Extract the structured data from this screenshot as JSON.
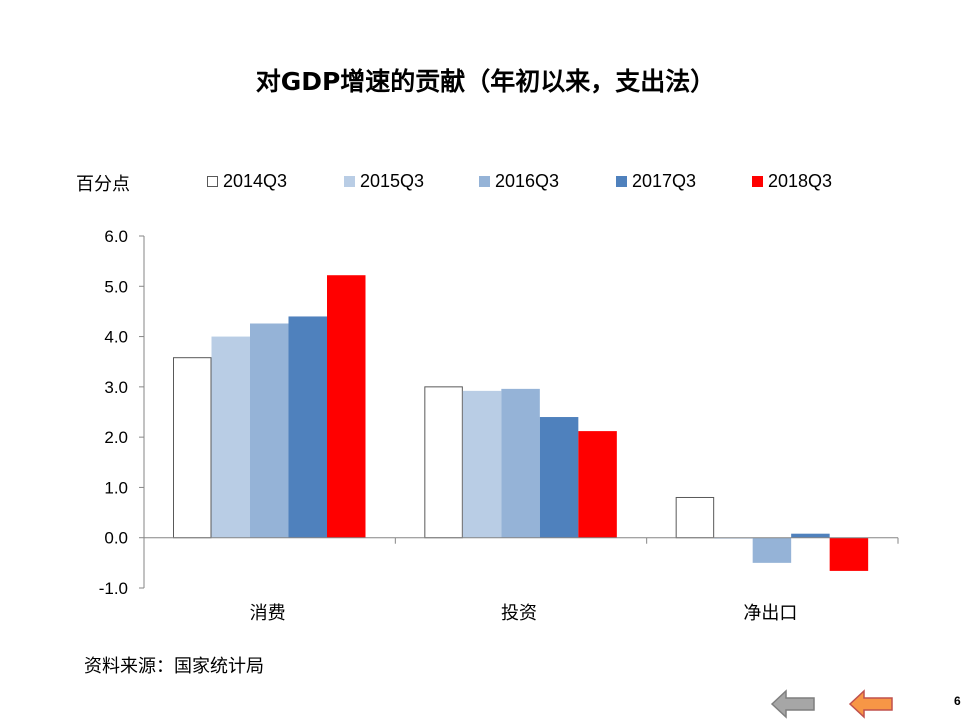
{
  "title": "对GDP增速的贡献（年初以来，支出法）",
  "unit_label": "百分点",
  "source": "资料来源：国家统计局",
  "page_number": "6",
  "nav": {
    "prev_icon": "left-arrow-icon",
    "next_icon": "left-arrow-icon"
  },
  "colors": {
    "series": [
      "#ffffff",
      "#b9cde5",
      "#95b3d7",
      "#4f81bd",
      "#ff0000"
    ],
    "nav_prev": "#a6a6a6",
    "nav_next": "#f79646"
  },
  "chart_data": {
    "type": "bar",
    "categories": [
      "消费",
      "投资",
      "净出口"
    ],
    "series": [
      {
        "name": "2014Q3",
        "values": [
          3.58,
          3.0,
          0.8
        ]
      },
      {
        "name": "2015Q3",
        "values": [
          4.0,
          2.92,
          -0.02
        ]
      },
      {
        "name": "2016Q3",
        "values": [
          4.26,
          2.96,
          -0.5
        ]
      },
      {
        "name": "2017Q3",
        "values": [
          4.4,
          2.4,
          0.08
        ]
      },
      {
        "name": "2018Q3",
        "values": [
          5.22,
          2.12,
          -0.66
        ]
      }
    ],
    "ylim": [
      -1.0,
      6.0
    ],
    "yticks": [
      "-1.0",
      "0.0",
      "1.0",
      "2.0",
      "3.0",
      "4.0",
      "5.0",
      "6.0"
    ],
    "legend_position": "top"
  }
}
